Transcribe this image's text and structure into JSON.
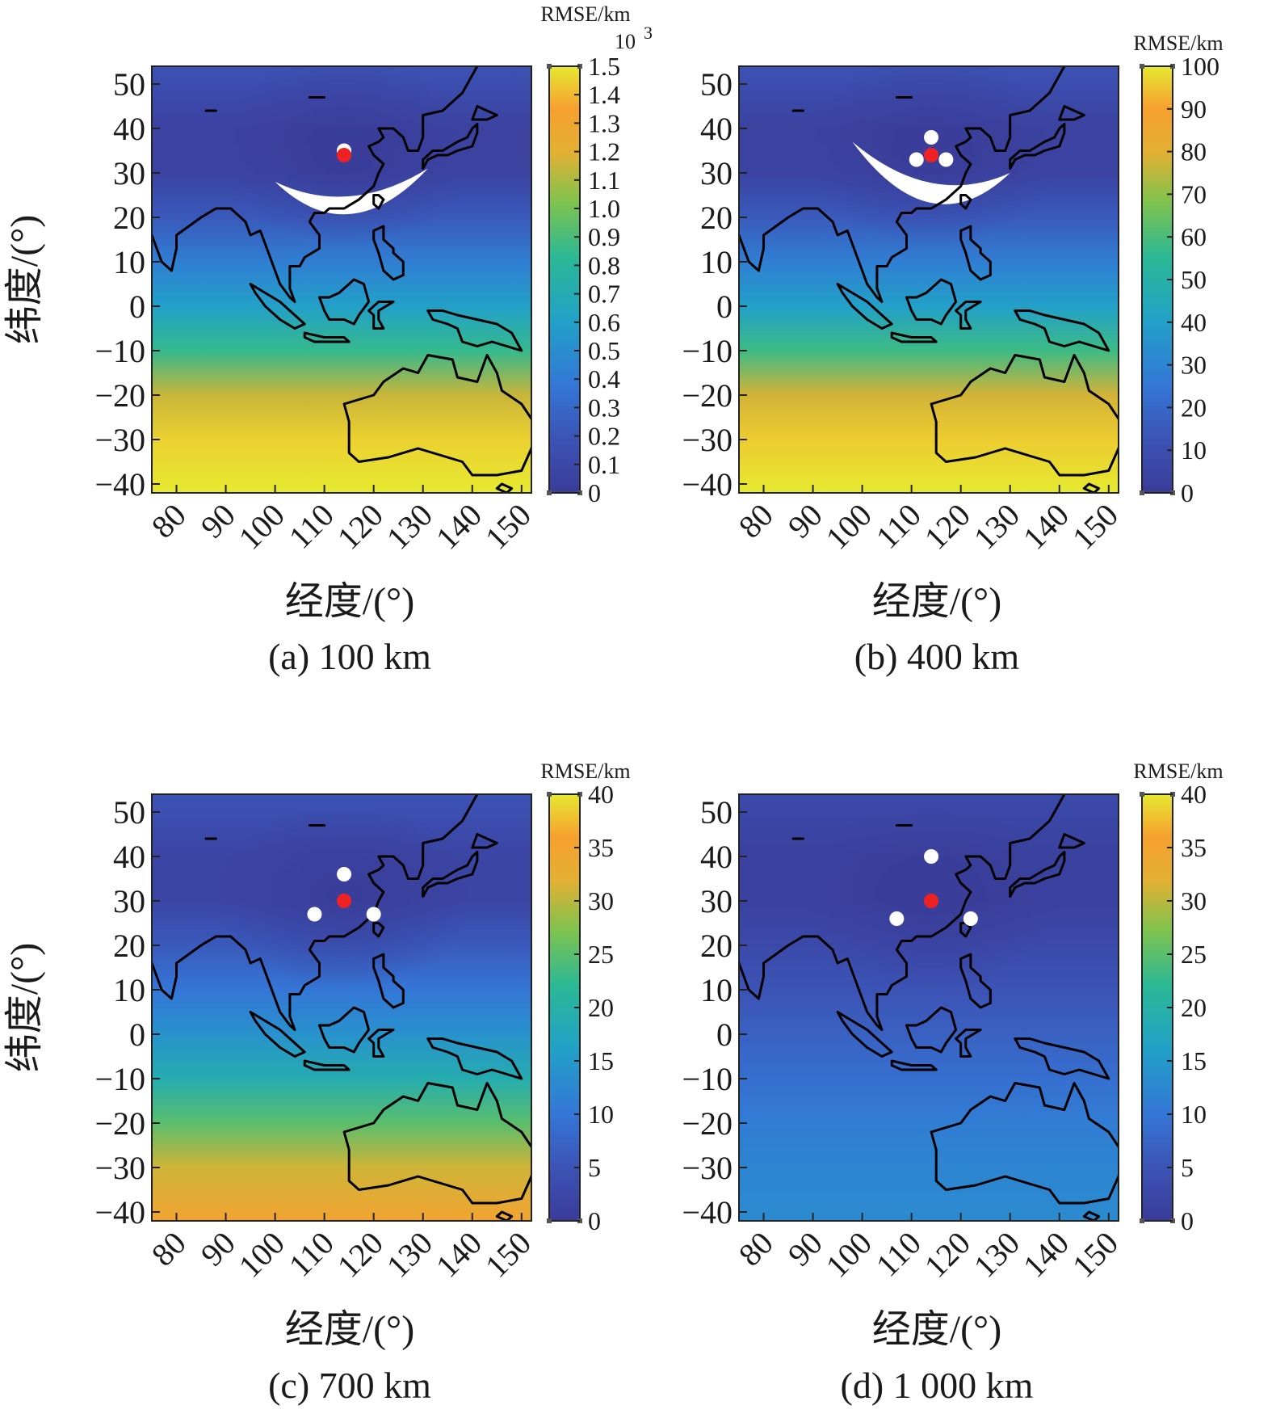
{
  "chart_data": [
    {
      "type": "heatmap",
      "caption": "(a) 100 km",
      "xlabel": "经度/(°)",
      "ylabel": "纬度/(°)",
      "xlim": [
        75,
        152
      ],
      "ylim": [
        -42,
        54
      ],
      "xticks": [
        80,
        90,
        100,
        110,
        120,
        130,
        140,
        150
      ],
      "yticks": [
        50,
        40,
        30,
        20,
        10,
        0,
        -10,
        -20,
        -30,
        -40
      ],
      "colorbar": {
        "label": "RMSE/km",
        "multiplier": "10",
        "multiplier_exp": "3",
        "min": 0,
        "max": 1.5,
        "ticks": [
          0,
          0.1,
          0.2,
          0.3,
          0.4,
          0.5,
          0.6,
          0.7,
          0.8,
          0.9,
          1.0,
          1.1,
          1.2,
          1.3,
          1.4,
          1.5
        ],
        "tick_labels": [
          "0",
          "0.1",
          "0.2",
          "0.3",
          "0.4",
          "0.5",
          "0.6",
          "0.7",
          "0.8",
          "0.9",
          "1.0",
          "1.1",
          "1.2",
          "1.3",
          "1.4",
          "1.5"
        ]
      },
      "rmse_profile": [
        [
          54,
          0.18
        ],
        [
          40,
          0.05
        ],
        [
          30,
          0.06
        ],
        [
          20,
          0.22
        ],
        [
          10,
          0.42
        ],
        [
          0,
          0.6
        ],
        [
          -10,
          0.85
        ],
        [
          -20,
          1.15
        ],
        [
          -30,
          1.45
        ],
        [
          -42,
          1.5
        ]
      ],
      "white_band": true,
      "center_station": [
        114,
        34
      ],
      "reference_stations": [
        [
          114,
          35
        ]
      ],
      "colors": {
        "low": "#3a3c98",
        "high": "#e6e92f",
        "center": "#ee2222",
        "station": "#ffffff"
      }
    },
    {
      "type": "heatmap",
      "caption": "(b) 400 km",
      "xlabel": "经度/(°)",
      "ylabel": "纬度/(°)",
      "xlim": [
        75,
        152
      ],
      "ylim": [
        -42,
        54
      ],
      "xticks": [
        80,
        90,
        100,
        110,
        120,
        130,
        140,
        150
      ],
      "yticks": [
        50,
        40,
        30,
        20,
        10,
        0,
        -10,
        -20,
        -30,
        -40
      ],
      "colorbar": {
        "label": "RMSE/km",
        "min": 0,
        "max": 100,
        "ticks": [
          0,
          10,
          20,
          30,
          40,
          50,
          60,
          70,
          80,
          90,
          100
        ],
        "tick_labels": [
          "0",
          "10",
          "20",
          "30",
          "40",
          "50",
          "60",
          "70",
          "80",
          "90",
          "100"
        ]
      },
      "rmse_profile": [
        [
          54,
          12
        ],
        [
          40,
          3
        ],
        [
          30,
          4
        ],
        [
          20,
          15
        ],
        [
          10,
          28
        ],
        [
          0,
          40
        ],
        [
          -10,
          58
        ],
        [
          -20,
          78
        ],
        [
          -30,
          96
        ],
        [
          -42,
          100
        ]
      ],
      "white_band": true,
      "center_station": [
        114,
        34
      ],
      "reference_stations": [
        [
          114,
          38
        ],
        [
          111,
          33
        ],
        [
          117,
          33
        ]
      ],
      "colors": {
        "low": "#3a3c98",
        "high": "#e6e92f",
        "center": "#ee2222",
        "station": "#ffffff"
      }
    },
    {
      "type": "heatmap",
      "caption": "(c) 700 km",
      "xlabel": "经度/(°)",
      "ylabel": "纬度/(°)",
      "xlim": [
        75,
        152
      ],
      "ylim": [
        -42,
        54
      ],
      "xticks": [
        80,
        90,
        100,
        110,
        120,
        130,
        140,
        150
      ],
      "yticks": [
        50,
        40,
        30,
        20,
        10,
        0,
        -10,
        -20,
        -30,
        -40
      ],
      "colorbar": {
        "label": "RMSE/km",
        "min": 0,
        "max": 40,
        "ticks": [
          0,
          5,
          10,
          15,
          20,
          25,
          30,
          35,
          40
        ],
        "tick_labels": [
          "0",
          "5",
          "10",
          "15",
          "20",
          "25",
          "30",
          "35",
          "40"
        ]
      },
      "rmse_profile": [
        [
          54,
          5
        ],
        [
          40,
          2
        ],
        [
          30,
          2
        ],
        [
          20,
          6
        ],
        [
          10,
          10
        ],
        [
          0,
          14
        ],
        [
          -10,
          19
        ],
        [
          -20,
          25
        ],
        [
          -30,
          31
        ],
        [
          -42,
          35
        ]
      ],
      "white_band": false,
      "center_station": [
        114,
        30
      ],
      "reference_stations": [
        [
          114,
          36
        ],
        [
          108,
          27
        ],
        [
          120,
          27
        ]
      ],
      "colors": {
        "low": "#3a3c98",
        "high": "#e6e92f",
        "center": "#ee2222",
        "station": "#ffffff"
      }
    },
    {
      "type": "heatmap",
      "caption": "(d) 1 000 km",
      "xlabel": "经度/(°)",
      "ylabel": "纬度/(°)",
      "xlim": [
        75,
        152
      ],
      "ylim": [
        -42,
        54
      ],
      "xticks": [
        80,
        90,
        100,
        110,
        120,
        130,
        140,
        150
      ],
      "yticks": [
        50,
        40,
        30,
        20,
        10,
        0,
        -10,
        -20,
        -30,
        -40
      ],
      "colorbar": {
        "label": "RMSE/km",
        "min": 0,
        "max": 40,
        "ticks": [
          0,
          5,
          10,
          15,
          20,
          25,
          30,
          35,
          40
        ],
        "tick_labels": [
          "0",
          "5",
          "10",
          "15",
          "20",
          "25",
          "30",
          "35",
          "40"
        ]
      },
      "rmse_profile": [
        [
          54,
          3
        ],
        [
          40,
          1
        ],
        [
          30,
          1
        ],
        [
          20,
          3
        ],
        [
          10,
          5
        ],
        [
          0,
          7
        ],
        [
          -10,
          9
        ],
        [
          -20,
          11
        ],
        [
          -30,
          12
        ],
        [
          -42,
          13
        ]
      ],
      "white_band": false,
      "center_station": [
        114,
        30
      ],
      "reference_stations": [
        [
          114,
          40
        ],
        [
          107,
          26
        ],
        [
          122,
          26
        ]
      ],
      "colors": {
        "low": "#3a3c98",
        "high": "#e6e92f",
        "center": "#ee2222",
        "station": "#ffffff"
      }
    }
  ]
}
